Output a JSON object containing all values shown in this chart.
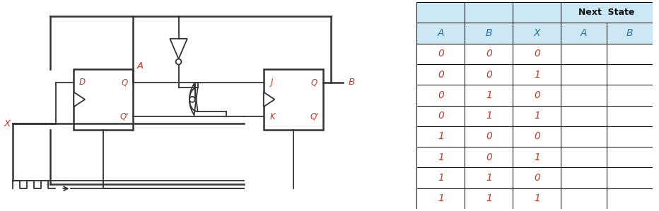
{
  "table_header_row2": [
    "A",
    "B",
    "X",
    "A",
    "B"
  ],
  "table_data": [
    [
      "0",
      "0",
      "0",
      "",
      ""
    ],
    [
      "0",
      "0",
      "1",
      "",
      ""
    ],
    [
      "0",
      "1",
      "0",
      "",
      ""
    ],
    [
      "0",
      "1",
      "1",
      "",
      ""
    ],
    [
      "1",
      "0",
      "0",
      "",
      ""
    ],
    [
      "1",
      "0",
      "1",
      "",
      ""
    ],
    [
      "1",
      "1",
      "0",
      "",
      ""
    ],
    [
      "1",
      "1",
      "1",
      "",
      ""
    ]
  ],
  "header_bg": "#cce8f4",
  "header_text_color": "#2471a3",
  "cell_bg": "#ffffff",
  "data_text_color": "#c0392b",
  "next_state_text_color": "#111111",
  "figsize": [
    9.32,
    2.99
  ],
  "dpi": 100,
  "circuit_label_color": "#c0392b",
  "circuit_line_color": "#333333"
}
